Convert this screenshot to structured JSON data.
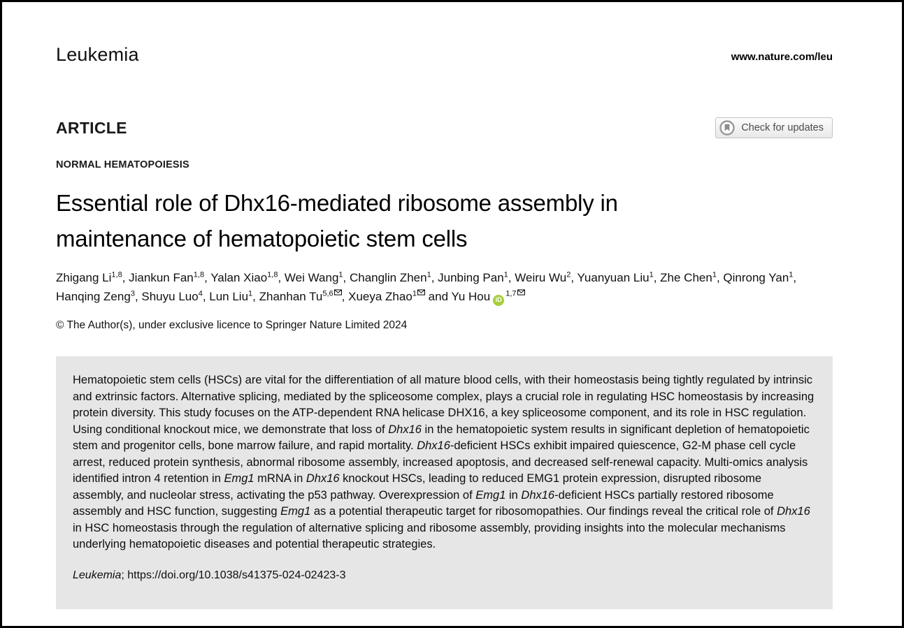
{
  "colors": {
    "orcid_green": "#A6CE39",
    "abstract_bg": "#e6e6e6",
    "border_black": "#000000"
  },
  "header": {
    "journal": "Leukemia",
    "site_url": "www.nature.com/leu"
  },
  "article": {
    "type_label": "ARTICLE",
    "updates_button": {
      "label": "Check for updates",
      "icon": "crossmark-bookmark-circle-icon"
    },
    "section_label": "NORMAL HEMATOPOIESIS",
    "title": {
      "full": "Essential role of Dhx16-mediated ribosome assembly in maintenance of hematopoietic stem cells",
      "line1": "Essential role of Dhx16-mediated ribosome assembly in",
      "line2": "maintenance of hematopoietic stem cells"
    },
    "authors": [
      {
        "sep": "",
        "name": "Zhigang Li",
        "sup": "1,8"
      },
      {
        "sep": ", ",
        "name": "Jiankun Fan",
        "sup": "1,8"
      },
      {
        "sep": ", ",
        "name": "Yalan Xiao",
        "sup": "1,8"
      },
      {
        "sep": ", ",
        "name": "Wei Wang",
        "sup": "1"
      },
      {
        "sep": ", ",
        "name": "Changlin Zhen",
        "sup": "1"
      },
      {
        "sep": ", ",
        "name": "Junbing Pan",
        "sup": "1"
      },
      {
        "sep": ", ",
        "name": "Weiru Wu",
        "sup": "2"
      },
      {
        "sep": ", ",
        "name": "Yuanyuan Liu",
        "sup": "1"
      },
      {
        "sep": ", ",
        "name": "Zhe Chen",
        "sup": "1"
      },
      {
        "sep": ", ",
        "name": "Qinrong Yan",
        "sup": "1"
      },
      {
        "sep": ", ",
        "name": "Hanqing Zeng",
        "sup": "3"
      },
      {
        "sep": ", ",
        "name": "Shuyu Luo",
        "sup": "4"
      },
      {
        "sep": ", ",
        "name": "Lun Liu",
        "sup": "1"
      },
      {
        "sep": ", ",
        "name": "Zhanhan Tu",
        "sup": "5,6",
        "envelope": true
      },
      {
        "sep": ", ",
        "name": "Xueya Zhao",
        "sup": "1",
        "envelope": true
      },
      {
        "sep": " and ",
        "name": "Yu Hou",
        "sup": "1,7",
        "envelope": true,
        "orcid": true
      }
    ],
    "copyright": "© The Author(s), under exclusive licence to Springer Nature Limited 2024"
  },
  "icons": {
    "orcid_label": "iD"
  },
  "abstract": {
    "segments": [
      {
        "t": "Hematopoietic stem cells (HSCs) are vital for the differentiation of all mature blood cells, with their homeostasis being tightly regulated by intrinsic and extrinsic factors. Alternative splicing, mediated by the spliceosome complex, plays a crucial role in regulating HSC homeostasis by increasing protein diversity. This study focuses on the ATP-dependent RNA helicase DHX16, a key spliceosome component, and its role in HSC regulation. Using conditional knockout mice, we demonstrate that loss of "
      },
      {
        "t": "Dhx16",
        "i": true
      },
      {
        "t": " in the hematopoietic system results in significant depletion of hematopoietic stem and progenitor cells, bone marrow failure, and rapid mortality. "
      },
      {
        "t": "Dhx16",
        "i": true
      },
      {
        "t": "-deficient HSCs exhibit impaired quiescence, G2-M phase cell cycle arrest, reduced protein synthesis, abnormal ribosome assembly, increased apoptosis, and decreased self-renewal capacity. Multi-omics analysis identified intron 4 retention in "
      },
      {
        "t": "Emg1",
        "i": true
      },
      {
        "t": " mRNA in "
      },
      {
        "t": "Dhx16",
        "i": true
      },
      {
        "t": " knockout HSCs, leading to reduced EMG1 protein expression, disrupted ribosome assembly, and nucleolar stress, activating the p53 pathway. Overexpression of "
      },
      {
        "t": "Emg1",
        "i": true
      },
      {
        "t": " in "
      },
      {
        "t": "Dhx16",
        "i": true
      },
      {
        "t": "-deficient HSCs partially restored ribosome assembly and HSC function, suggesting "
      },
      {
        "t": "Emg1",
        "i": true
      },
      {
        "t": " as a potential therapeutic target for ribosomopathies. Our findings reveal the critical role of "
      },
      {
        "t": "Dhx16",
        "i": true
      },
      {
        "t": " in HSC homeostasis through the regulation of alternative splicing and ribosome assembly, providing insights into the molecular mechanisms underlying hematopoietic diseases and potential therapeutic strategies."
      }
    ],
    "citation_segments": [
      {
        "t": "Leukemia",
        "i": true
      },
      {
        "t": "; https://doi.org/10.1038/s41375-024-02423-3"
      }
    ]
  }
}
